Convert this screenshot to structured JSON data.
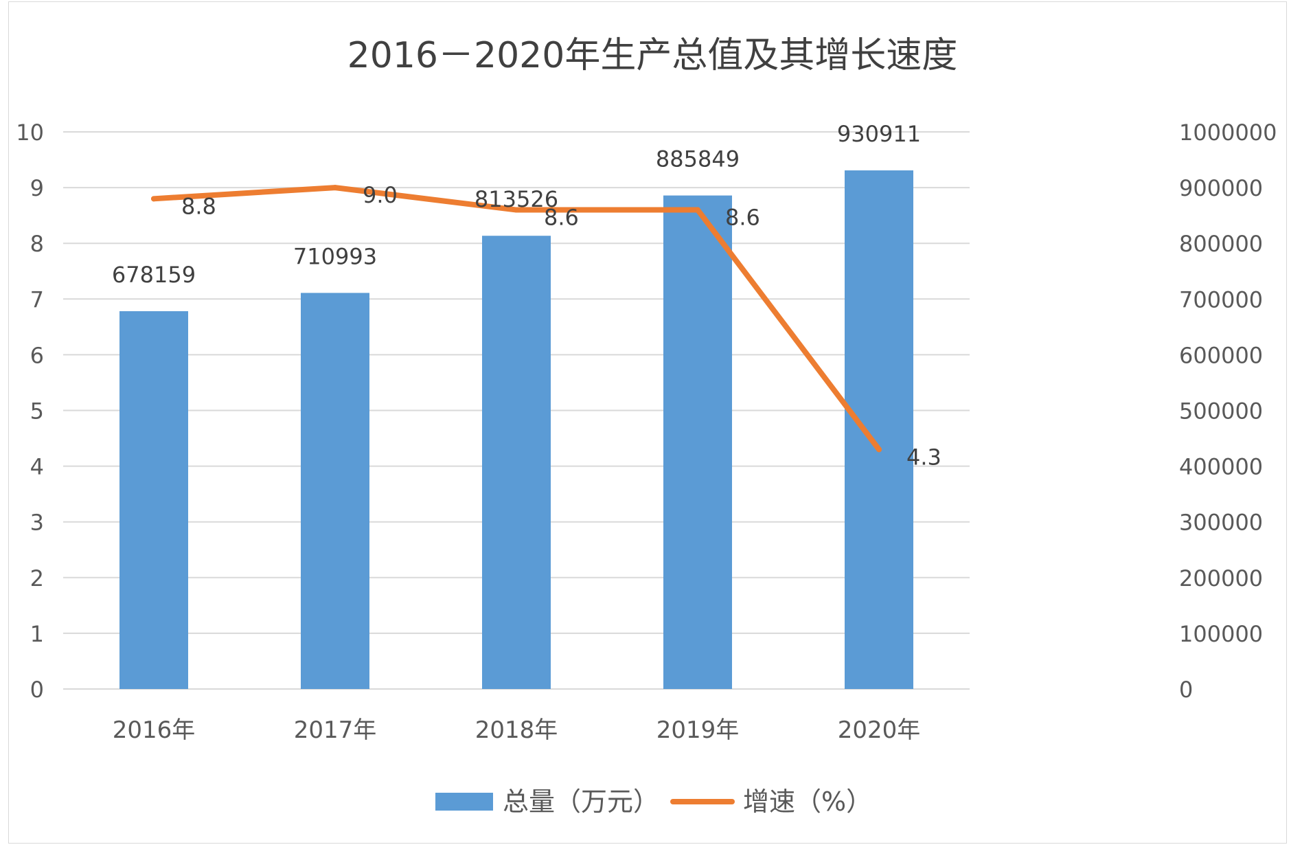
{
  "chart_data": {
    "type": "bar",
    "title": "2016－2020年生产总值及其增长速度",
    "categories": [
      "2016年",
      "2017年",
      "2018年",
      "2019年",
      "2020年"
    ],
    "series": [
      {
        "name": "总量（万元）",
        "kind": "bar",
        "axis": "right",
        "values": [
          678159,
          710993,
          813526,
          885849,
          930911
        ],
        "labels": [
          "678159",
          "710993",
          "813526",
          "885849",
          "930911"
        ],
        "color": "#5b9bd5"
      },
      {
        "name": "增速（%）",
        "kind": "line",
        "axis": "left",
        "values": [
          8.8,
          9.0,
          8.6,
          8.6,
          4.3
        ],
        "labels": [
          "8.8",
          "9.0",
          "8.6",
          "8.6",
          "4.3"
        ],
        "color": "#ed7d31"
      }
    ],
    "y_left": {
      "min": 0,
      "max": 10,
      "ticks": [
        "0",
        "1",
        "2",
        "3",
        "4",
        "5",
        "6",
        "7",
        "8",
        "9",
        "10"
      ]
    },
    "y_right": {
      "min": 0,
      "max": 1000000,
      "ticks": [
        "0",
        "100000",
        "200000",
        "300000",
        "400000",
        "500000",
        "600000",
        "700000",
        "800000",
        "900000",
        "1000000"
      ]
    },
    "grid": true,
    "legend": "bottom"
  }
}
